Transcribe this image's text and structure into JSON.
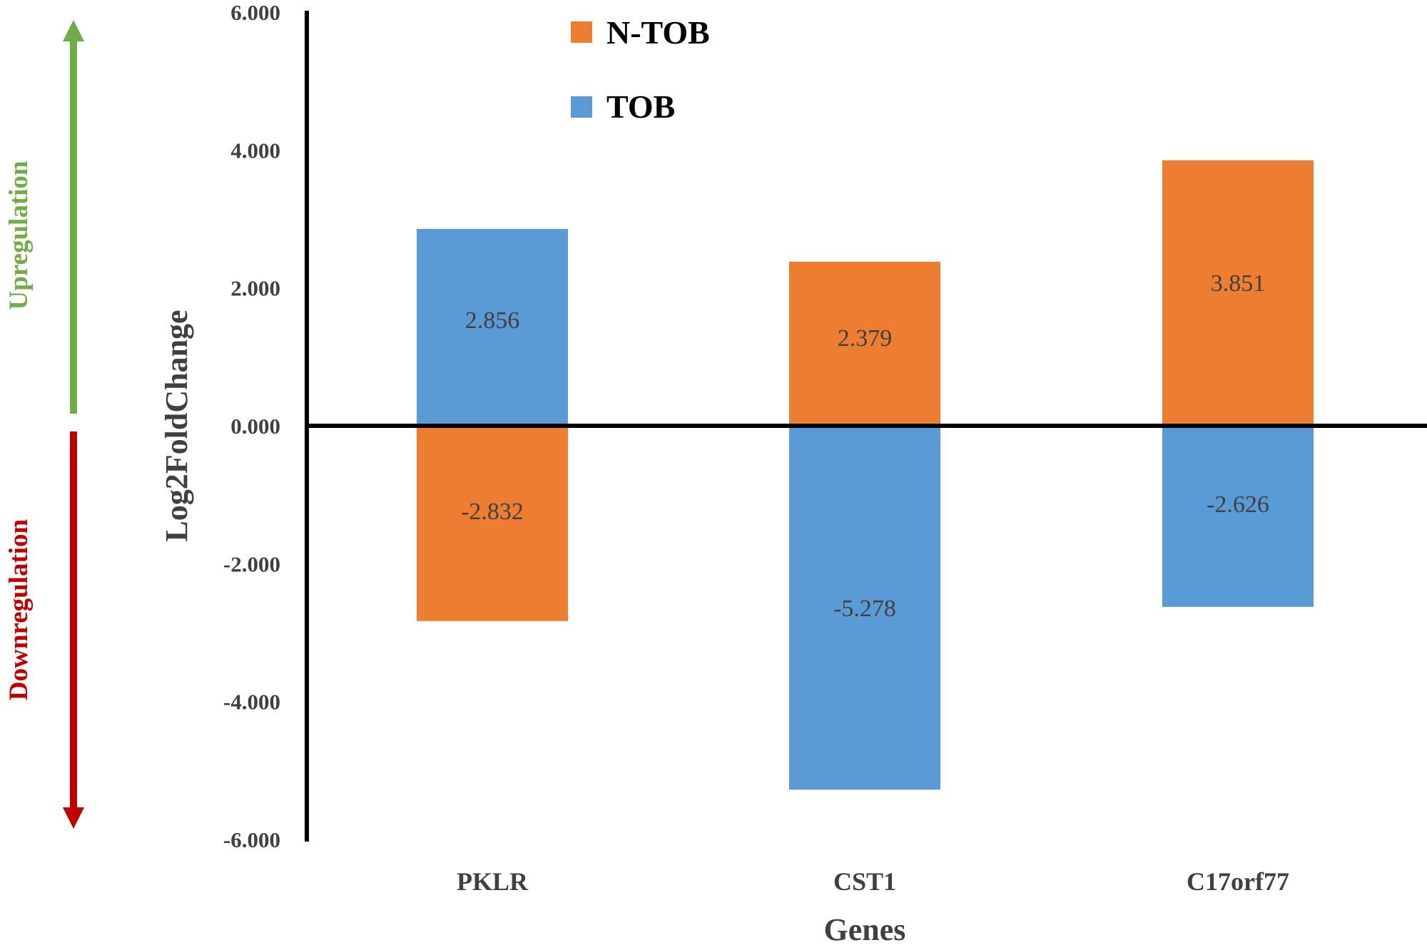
{
  "chart_data": {
    "type": "bar",
    "categories": [
      "PKLR",
      "CST1",
      "C17orf77"
    ],
    "series": [
      {
        "name": "N-TOB",
        "color": "#ED7D31",
        "values": [
          -2.832,
          2.379,
          3.851
        ]
      },
      {
        "name": "TOB",
        "color": "#5B9BD5",
        "values": [
          2.856,
          -5.278,
          -2.626
        ]
      }
    ],
    "data_labels": [
      [
        "-2.832",
        "2.379",
        "3.851"
      ],
      [
        "2.856",
        "-5.278",
        "-2.626"
      ]
    ],
    "xlabel": "Genes",
    "ylabel": "Log2FoldChange",
    "ylim": [
      -6,
      6
    ],
    "yticks": [
      6,
      4,
      2,
      0,
      -2,
      -4,
      -6
    ],
    "ytick_labels": [
      "6.000",
      "4.000",
      "2.000",
      "0.000",
      "-2.000",
      "-4.000",
      "-6.000"
    ],
    "grid": false,
    "legend_position": "top",
    "stacked": true
  },
  "annotations": {
    "upregulation": {
      "text": "Upregulation",
      "color": "#70AD47"
    },
    "downregulation": {
      "text": "Downregulation",
      "color": "#C00000"
    }
  }
}
